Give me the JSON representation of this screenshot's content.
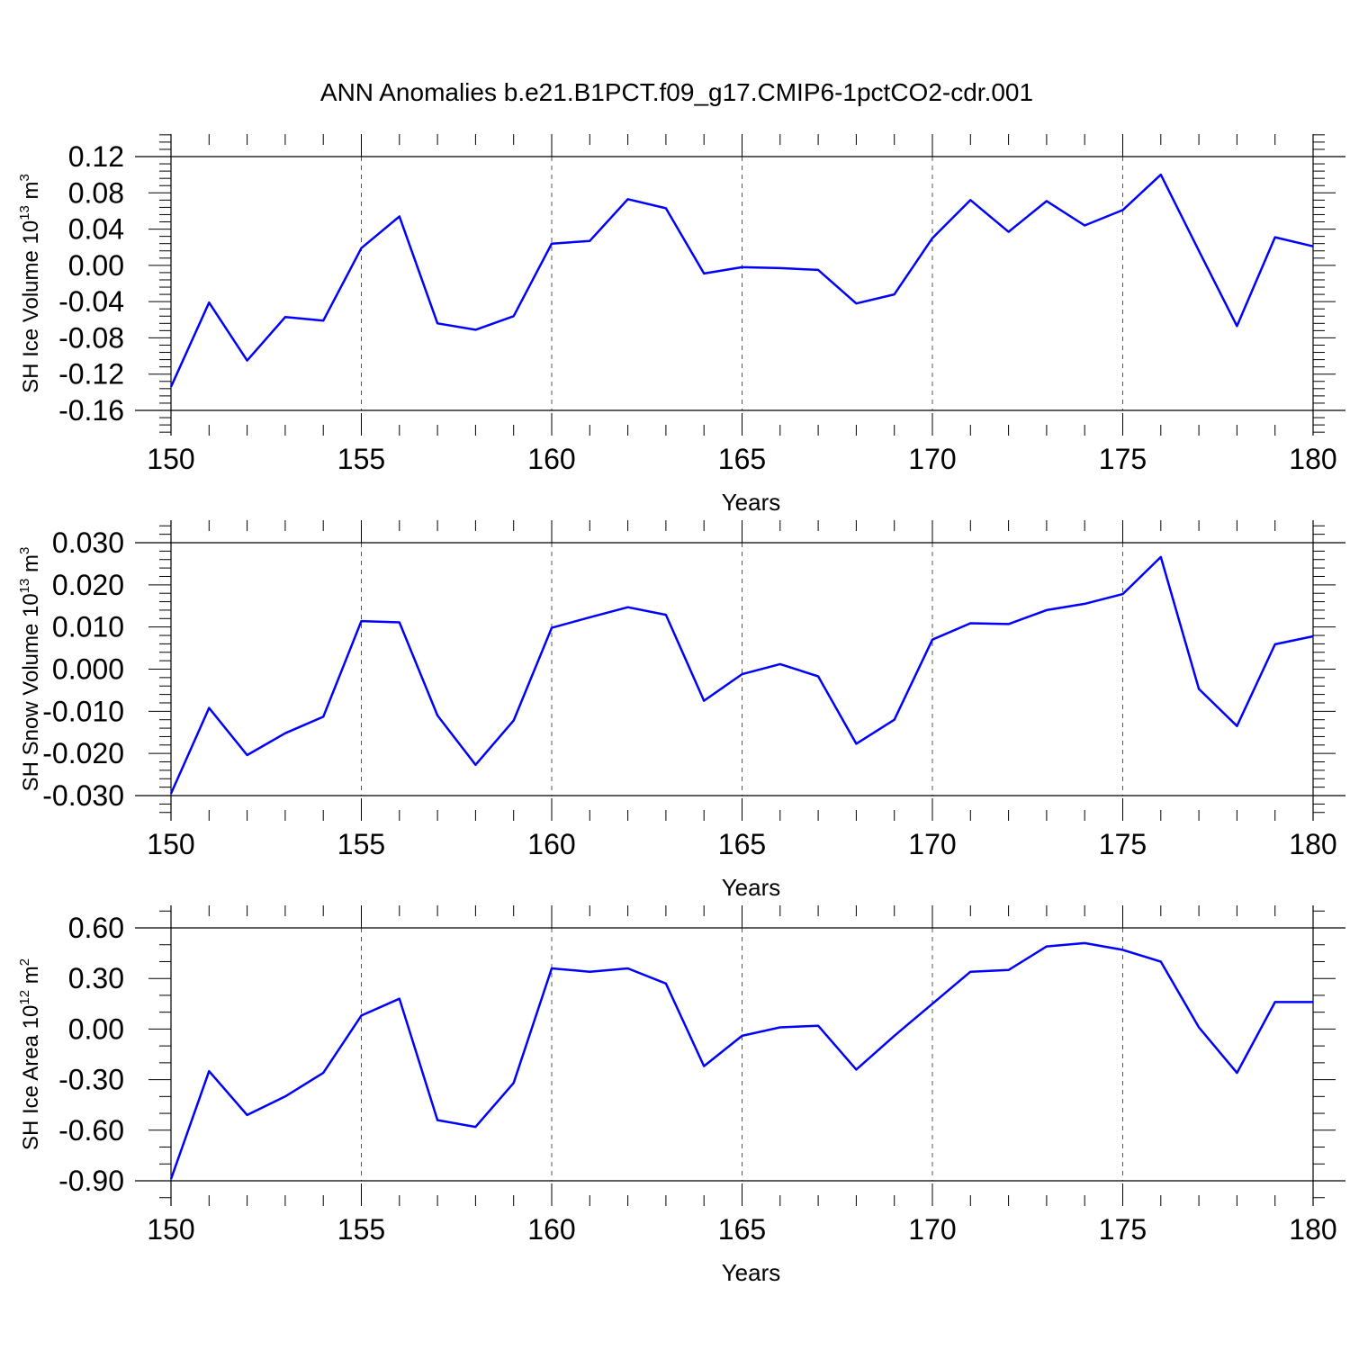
{
  "title": "ANN Anomalies b.e21.B1PCT.f09_g17.CMIP6-1pctCO2-cdr.001",
  "colors": {
    "line": "#0000ff",
    "axis": "#000000",
    "grid": "#555555"
  },
  "chart_data": [
    {
      "type": "line",
      "panel": "sh-ice-volume",
      "xlabel": "Years",
      "ylabel": {
        "main": "SH Ice Volume 10",
        "exp": "13",
        "unit": " m",
        "unit_exp": "3"
      },
      "xlim": [
        150,
        180
      ],
      "ylim": [
        -0.16,
        0.12
      ],
      "x_ticks": [
        150,
        155,
        160,
        165,
        170,
        175,
        180
      ],
      "x_tick_labels": [
        "150",
        "155",
        "160",
        "165",
        "170",
        "175",
        "180"
      ],
      "y_ticks": [
        0.12,
        0.08,
        0.04,
        0.0,
        -0.04,
        -0.08,
        -0.12,
        -0.16
      ],
      "y_tick_labels": [
        "0.12",
        "0.08",
        "0.04",
        "0.00",
        "-0.04",
        "-0.08",
        "-0.12",
        "-0.16"
      ],
      "y_minor": 5,
      "x": [
        150,
        151,
        152,
        153,
        154,
        155,
        156,
        157,
        158,
        159,
        160,
        161,
        162,
        163,
        164,
        165,
        166,
        167,
        168,
        169,
        170,
        171,
        172,
        173,
        174,
        175,
        176,
        177,
        178,
        179,
        180
      ],
      "values": [
        -0.134,
        -0.041,
        -0.105,
        -0.057,
        -0.061,
        0.019,
        0.054,
        -0.064,
        -0.071,
        -0.056,
        0.024,
        0.027,
        0.073,
        0.063,
        -0.009,
        -0.002,
        -0.003,
        -0.005,
        -0.042,
        -0.032,
        0.03,
        0.072,
        0.037,
        0.071,
        0.044,
        0.061,
        0.1,
        0.016,
        -0.067,
        0.031,
        0.021
      ]
    },
    {
      "type": "line",
      "panel": "sh-snow-volume",
      "xlabel": "Years",
      "ylabel": {
        "main": "SH Snow Volume 10",
        "exp": "13",
        "unit": " m",
        "unit_exp": "3"
      },
      "xlim": [
        150,
        180
      ],
      "ylim": [
        -0.03,
        0.03
      ],
      "x_ticks": [
        150,
        155,
        160,
        165,
        170,
        175,
        180
      ],
      "x_tick_labels": [
        "150",
        "155",
        "160",
        "165",
        "170",
        "175",
        "180"
      ],
      "y_ticks": [
        0.03,
        0.02,
        0.01,
        0.0,
        -0.01,
        -0.02,
        -0.03
      ],
      "y_tick_labels": [
        "0.030",
        "0.020",
        "0.010",
        "0.000",
        "-0.010",
        "-0.020",
        "-0.030"
      ],
      "y_minor": 5,
      "x": [
        150,
        151,
        152,
        153,
        154,
        155,
        156,
        157,
        158,
        159,
        160,
        161,
        162,
        163,
        164,
        165,
        166,
        167,
        168,
        169,
        170,
        171,
        172,
        173,
        174,
        175,
        176,
        177,
        178,
        179,
        180
      ],
      "values": [
        -0.0295,
        -0.0092,
        -0.0204,
        -0.0152,
        -0.0113,
        0.0114,
        0.0111,
        -0.011,
        -0.0227,
        -0.0122,
        0.0098,
        0.0123,
        0.0147,
        0.0129,
        -0.0075,
        -0.0012,
        0.0012,
        -0.0017,
        -0.0177,
        -0.012,
        0.007,
        0.0109,
        0.0107,
        0.014,
        0.0155,
        0.0178,
        0.0266,
        -0.0047,
        -0.0135,
        0.0059,
        0.0078
      ]
    },
    {
      "type": "line",
      "panel": "sh-ice-area",
      "xlabel": "Years",
      "ylabel": {
        "main": "SH Ice Area 10",
        "exp": "12",
        "unit": " m",
        "unit_exp": "2"
      },
      "xlim": [
        150,
        180
      ],
      "ylim": [
        -0.9,
        0.6
      ],
      "x_ticks": [
        150,
        155,
        160,
        165,
        170,
        175,
        180
      ],
      "x_tick_labels": [
        "150",
        "155",
        "160",
        "165",
        "170",
        "175",
        "180"
      ],
      "y_ticks": [
        0.6,
        0.3,
        0.0,
        -0.3,
        -0.6,
        -0.9
      ],
      "y_tick_labels": [
        "0.60",
        "0.30",
        "0.00",
        "-0.30",
        "-0.60",
        "-0.90"
      ],
      "y_minor": 3,
      "x": [
        150,
        151,
        152,
        153,
        154,
        155,
        156,
        157,
        158,
        159,
        160,
        161,
        162,
        163,
        164,
        165,
        166,
        167,
        168,
        169,
        170,
        171,
        172,
        173,
        174,
        175,
        176,
        177,
        178,
        179,
        180
      ],
      "values": [
        -0.89,
        -0.25,
        -0.51,
        -0.4,
        -0.26,
        0.08,
        0.18,
        -0.54,
        -0.58,
        -0.32,
        0.36,
        0.34,
        0.36,
        0.27,
        -0.22,
        -0.04,
        0.01,
        0.02,
        -0.24,
        -0.04,
        0.15,
        0.34,
        0.35,
        0.49,
        0.51,
        0.47,
        0.4,
        0.01,
        -0.26,
        0.16,
        0.16
      ]
    }
  ]
}
